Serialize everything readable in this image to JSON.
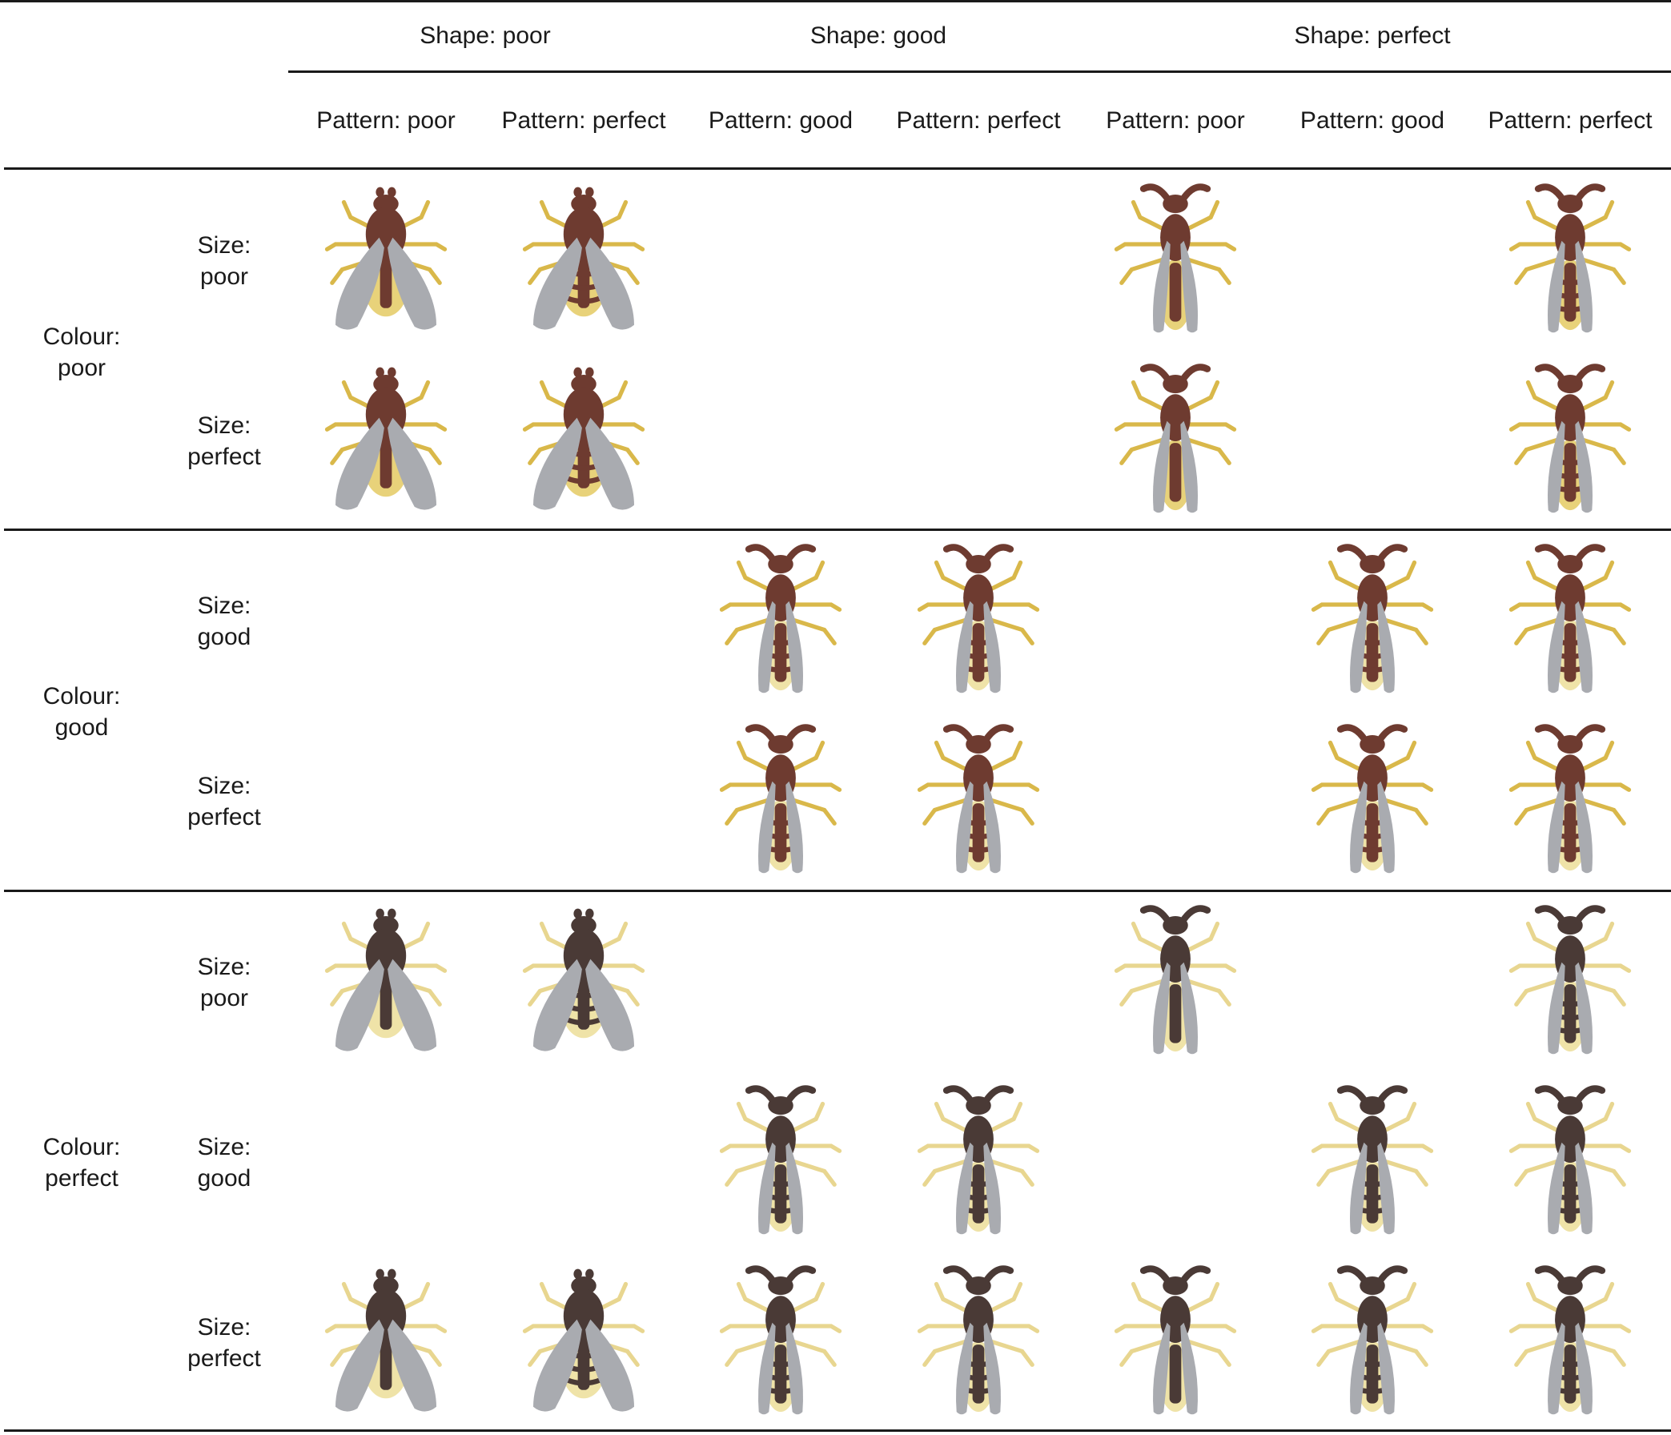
{
  "shape_headers": [
    "Shape: poor",
    "Shape: good",
    "Shape: perfect"
  ],
  "pattern_headers": [
    "Pattern: poor",
    "Pattern: perfect",
    "Pattern: good",
    "Pattern: perfect",
    "Pattern: poor",
    "Pattern: good",
    "Pattern: perfect"
  ],
  "colour_groups": [
    {
      "label_line1": "Colour:",
      "label_line2": "poor",
      "sizes": [
        {
          "line1": "Size:",
          "line2": "poor"
        },
        {
          "line1": "Size:",
          "line2": "perfect"
        }
      ]
    },
    {
      "label_line1": "Colour:",
      "label_line2": "good",
      "sizes": [
        {
          "line1": "Size:",
          "line2": "good"
        },
        {
          "line1": "Size:",
          "line2": "perfect"
        }
      ]
    },
    {
      "label_line1": "Colour:",
      "label_line2": "perfect",
      "sizes": [
        {
          "line1": "Size:",
          "line2": "poor"
        },
        {
          "line1": "Size:",
          "line2": "good"
        },
        {
          "line1": "Size:",
          "line2": "perfect"
        }
      ]
    }
  ],
  "insect_grid": [
    [
      true,
      true,
      false,
      false,
      true,
      false,
      true
    ],
    [
      true,
      true,
      false,
      false,
      true,
      false,
      true
    ],
    [
      false,
      false,
      true,
      true,
      false,
      true,
      true
    ],
    [
      false,
      false,
      true,
      true,
      false,
      true,
      true
    ],
    [
      true,
      true,
      false,
      false,
      true,
      false,
      true
    ],
    [
      false,
      false,
      true,
      true,
      false,
      true,
      true
    ],
    [
      true,
      true,
      true,
      true,
      true,
      true,
      true
    ]
  ],
  "colors": {
    "body_dark": "#6e3b30",
    "body_grey": "#4a3a36",
    "stripe_yellow": "#e8d27a",
    "stripe_pale": "#efe3a8",
    "leg_yellow": "#d9b84a",
    "leg_pale": "#e8d690",
    "wing": "#a9abb0",
    "rule": "#1a1a1a"
  }
}
